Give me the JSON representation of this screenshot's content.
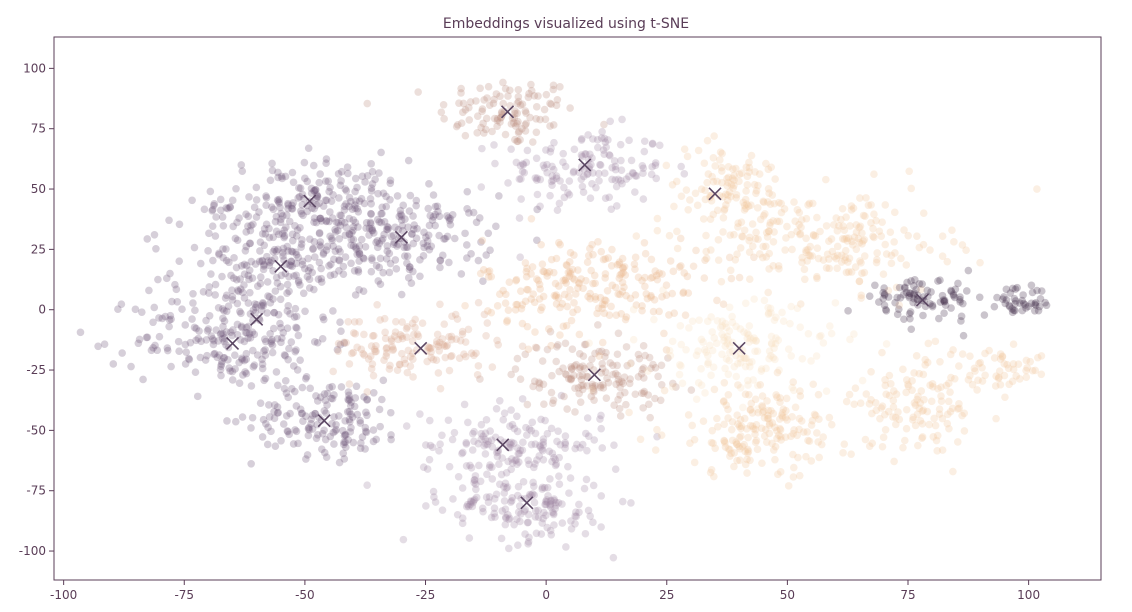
{
  "chart_data": {
    "type": "scatter",
    "title": "Embeddings visualized using t-SNE",
    "xlabel": "",
    "ylabel": "",
    "xlim": [
      -102,
      115
    ],
    "ylim": [
      -112,
      113
    ],
    "xticks": [
      -100,
      -75,
      -50,
      -25,
      0,
      25,
      50,
      75,
      100
    ],
    "yticks": [
      100,
      75,
      50,
      25,
      0,
      -25,
      -50,
      -75,
      -100
    ],
    "grid": false,
    "legend": "none",
    "colors": {
      "axes": "#5a3d57",
      "points": [
        "#3f2a48",
        "#6d5378",
        "#9d86a0",
        "#b98b7c",
        "#d7a58d",
        "#e8b28a",
        "#f0c69b",
        "#f8ddbe"
      ],
      "markers": "#5b4663"
    },
    "clusters": [
      {
        "center": [
          -8,
          82
        ],
        "spread": [
          10,
          10
        ],
        "color": "#b98b7c",
        "count": 110
      },
      {
        "center": [
          8,
          58
        ],
        "spread": [
          12,
          12
        ],
        "color": "#9d86a0",
        "count": 145
      },
      {
        "center": [
          -48,
          45
        ],
        "spread": [
          14,
          12
        ],
        "color": "#6d5378",
        "count": 180
      },
      {
        "center": [
          -30,
          30
        ],
        "spread": [
          13,
          12
        ],
        "color": "#6d5378",
        "count": 190
      },
      {
        "center": [
          -57,
          18
        ],
        "spread": [
          14,
          16
        ],
        "color": "#6d5378",
        "count": 220
      },
      {
        "center": [
          -65,
          -12
        ],
        "spread": [
          14,
          15
        ],
        "color": "#6d5378",
        "count": 210
      },
      {
        "center": [
          -45,
          -45
        ],
        "spread": [
          11,
          11
        ],
        "color": "#6d5378",
        "count": 150
      },
      {
        "center": [
          -7,
          -56
        ],
        "spread": [
          13,
          11
        ],
        "color": "#9d86a0",
        "count": 160
      },
      {
        "center": [
          -4,
          -82
        ],
        "spread": [
          12,
          10
        ],
        "color": "#9d86a0",
        "count": 150
      },
      {
        "center": [
          -27,
          -15
        ],
        "spread": [
          12,
          10
        ],
        "color": "#d7a58d",
        "count": 140
      },
      {
        "center": [
          10,
          -27
        ],
        "spread": [
          11,
          10
        ],
        "color": "#b98b7c",
        "count": 150
      },
      {
        "center": [
          10,
          10
        ],
        "spread": [
          16,
          14
        ],
        "color": "#e8b28a",
        "count": 230
      },
      {
        "center": [
          38,
          48
        ],
        "spread": [
          10,
          14
        ],
        "color": "#f0c69b",
        "count": 130
      },
      {
        "center": [
          60,
          28
        ],
        "spread": [
          16,
          14
        ],
        "color": "#f0c69b",
        "count": 200
      },
      {
        "center": [
          40,
          -16
        ],
        "spread": [
          14,
          14
        ],
        "color": "#f8ddbe",
        "count": 160
      },
      {
        "center": [
          45,
          -50
        ],
        "spread": [
          14,
          13
        ],
        "color": "#f0c69b",
        "count": 190
      },
      {
        "center": [
          78,
          -38
        ],
        "spread": [
          10,
          13
        ],
        "color": "#f0c69b",
        "count": 120
      },
      {
        "center": [
          77,
          4
        ],
        "spread": [
          8,
          6
        ],
        "color": "#3f2a48",
        "count": 85
      },
      {
        "center": [
          98,
          3
        ],
        "spread": [
          5,
          4
        ],
        "color": "#3f2a48",
        "count": 45
      },
      {
        "center": [
          95,
          -25
        ],
        "spread": [
          7,
          5
        ],
        "color": "#f0c69b",
        "count": 45
      }
    ],
    "markers": [
      [
        -8,
        82
      ],
      [
        8,
        60
      ],
      [
        -49,
        45
      ],
      [
        -30,
        30
      ],
      [
        -55,
        18
      ],
      [
        -60,
        -4
      ],
      [
        -65,
        -14
      ],
      [
        -46,
        -46
      ],
      [
        -9,
        -56
      ],
      [
        -4,
        -80
      ],
      [
        -26,
        -16
      ],
      [
        10,
        -27
      ],
      [
        35,
        48
      ],
      [
        40,
        -16
      ],
      [
        78,
        4
      ]
    ]
  }
}
